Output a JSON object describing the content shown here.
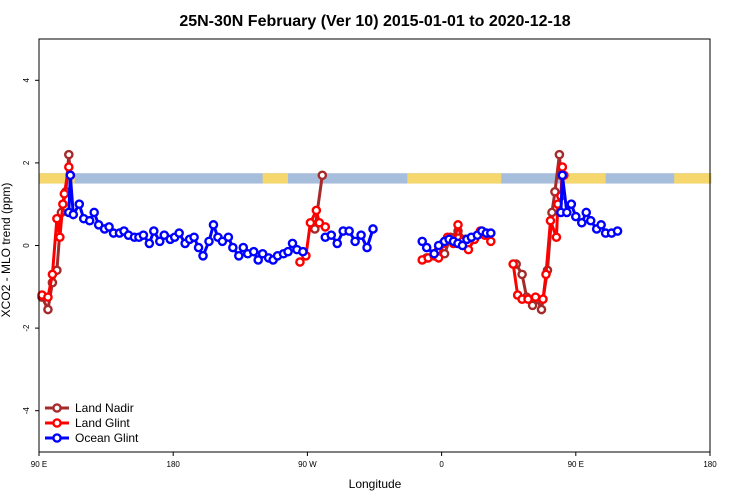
{
  "chart_data": {
    "type": "line",
    "title": "25N-30N February (Ver 10)   2015-01-01 to 2020-12-18",
    "xlabel": "Longitude",
    "ylabel": "XCO2 - MLO trend (ppm)",
    "xlim": [
      90,
      450
    ],
    "ylim": [
      -5,
      5
    ],
    "x_ticks": [
      {
        "value": 90,
        "label": "90 E"
      },
      {
        "value": 180,
        "label": "180"
      },
      {
        "value": 270,
        "label": "90 W"
      },
      {
        "value": 360,
        "label": "0"
      },
      {
        "value": 450,
        "label": "90 E"
      },
      {
        "value": 540,
        "label": "180"
      }
    ],
    "y_ticks": [
      {
        "value": -4,
        "label": "-4"
      },
      {
        "value": -2,
        "label": "-2"
      },
      {
        "value": 0,
        "label": "0"
      },
      {
        "value": 2,
        "label": "2"
      },
      {
        "value": 4,
        "label": "4"
      }
    ],
    "grid": false,
    "legend_position": "bottom-left",
    "land_band": {
      "y_range": [
        1.5,
        1.75
      ],
      "land_color": "#f5d76e",
      "ocean_color": "#a6bddb",
      "land_segments": [
        [
          90,
          114
        ],
        [
          240,
          257
        ],
        [
          337,
          400
        ],
        [
          441,
          470
        ],
        [
          516,
          541
        ]
      ]
    },
    "series": [
      {
        "name": "Land Nadir",
        "color": "#a52a2a",
        "points": [
          [
            92,
            -1.25
          ],
          [
            96,
            -1.55
          ],
          [
            99,
            -0.9
          ],
          [
            102,
            -0.6
          ],
          [
            105,
            0.8
          ],
          [
            108,
            1.3
          ],
          [
            110,
            2.2
          ],
          [
            111,
            1.7
          ],
          [
            275,
            0.4
          ],
          [
            280,
            1.7
          ],
          [
            350,
            -0.3
          ],
          [
            355,
            -0.2
          ],
          [
            358,
            -0.1
          ],
          [
            362,
            -0.2
          ],
          [
            366,
            0.2
          ],
          [
            371,
            0.35
          ],
          [
            376,
            0.15
          ],
          [
            410,
            -0.45
          ],
          [
            414,
            -0.7
          ],
          [
            417,
            -1.25
          ],
          [
            421,
            -1.45
          ],
          [
            424,
            -1.3
          ],
          [
            427,
            -1.55
          ],
          [
            431,
            -0.6
          ],
          [
            434,
            0.8
          ],
          [
            436,
            1.3
          ],
          [
            439,
            2.2
          ],
          [
            440,
            1.7
          ]
        ]
      },
      {
        "name": "Land Glint",
        "color": "#ff0000",
        "points": [
          [
            92,
            -1.2
          ],
          [
            96,
            -1.25
          ],
          [
            99,
            -0.7
          ],
          [
            102,
            0.65
          ],
          [
            104,
            0.2
          ],
          [
            106,
            1.0
          ],
          [
            107,
            1.25
          ],
          [
            110,
            1.9
          ],
          [
            111,
            1.7
          ],
          [
            265,
            -0.4
          ],
          [
            269,
            -0.25
          ],
          [
            272,
            0.55
          ],
          [
            276,
            0.85
          ],
          [
            278,
            0.55
          ],
          [
            282,
            0.45
          ],
          [
            347,
            -0.35
          ],
          [
            351,
            -0.3
          ],
          [
            355,
            -0.25
          ],
          [
            358,
            -0.3
          ],
          [
            361,
            0.05
          ],
          [
            364,
            0.2
          ],
          [
            368,
            0.05
          ],
          [
            371,
            0.5
          ],
          [
            374,
            0.1
          ],
          [
            378,
            -0.1
          ],
          [
            382,
            0.15
          ],
          [
            386,
            0.35
          ],
          [
            389,
            0.25
          ],
          [
            393,
            0.1
          ],
          [
            408,
            -0.45
          ],
          [
            411,
            -1.2
          ],
          [
            414,
            -1.3
          ],
          [
            418,
            -1.3
          ],
          [
            423,
            -1.25
          ],
          [
            428,
            -1.3
          ],
          [
            430,
            -0.7
          ],
          [
            433,
            0.6
          ],
          [
            437,
            0.2
          ],
          [
            438,
            1.0
          ],
          [
            440,
            1.2
          ],
          [
            441,
            1.9
          ],
          [
            442,
            1.7
          ]
        ]
      },
      {
        "name": "Ocean Glint",
        "color": "#0000ff",
        "points": [
          [
            110,
            0.8
          ],
          [
            111,
            1.7
          ],
          [
            113,
            0.75
          ],
          [
            117,
            1.0
          ],
          [
            120,
            0.65
          ],
          [
            124,
            0.6
          ],
          [
            127,
            0.8
          ],
          [
            130,
            0.5
          ],
          [
            134,
            0.4
          ],
          [
            137,
            0.45
          ],
          [
            140,
            0.3
          ],
          [
            144,
            0.3
          ],
          [
            147,
            0.35
          ],
          [
            150,
            0.25
          ],
          [
            154,
            0.2
          ],
          [
            157,
            0.2
          ],
          [
            160,
            0.25
          ],
          [
            164,
            0.05
          ],
          [
            167,
            0.35
          ],
          [
            171,
            0.1
          ],
          [
            174,
            0.25
          ],
          [
            178,
            0.15
          ],
          [
            181,
            0.2
          ],
          [
            184,
            0.3
          ],
          [
            188,
            0.05
          ],
          [
            191,
            0.15
          ],
          [
            194,
            0.2
          ],
          [
            197,
            -0.05
          ],
          [
            200,
            -0.25
          ],
          [
            204,
            0.1
          ],
          [
            207,
            0.5
          ],
          [
            210,
            0.2
          ],
          [
            213,
            0.1
          ],
          [
            217,
            0.2
          ],
          [
            220,
            -0.05
          ],
          [
            224,
            -0.25
          ],
          [
            227,
            -0.05
          ],
          [
            230,
            -0.2
          ],
          [
            234,
            -0.15
          ],
          [
            237,
            -0.35
          ],
          [
            240,
            -0.2
          ],
          [
            244,
            -0.3
          ],
          [
            247,
            -0.35
          ],
          [
            250,
            -0.25
          ],
          [
            254,
            -0.2
          ],
          [
            257,
            -0.15
          ],
          [
            260,
            0.05
          ],
          [
            263,
            -0.1
          ],
          [
            267,
            -0.15
          ],
          [
            282,
            0.2
          ],
          [
            286,
            0.25
          ],
          [
            290,
            0.05
          ],
          [
            294,
            0.35
          ],
          [
            298,
            0.35
          ],
          [
            302,
            0.1
          ],
          [
            306,
            0.25
          ],
          [
            310,
            -0.05
          ],
          [
            314,
            0.4
          ],
          [
            347,
            0.1
          ],
          [
            350,
            -0.05
          ],
          [
            355,
            -0.2
          ],
          [
            358,
            0.0
          ],
          [
            362,
            0.1
          ],
          [
            365,
            0.15
          ],
          [
            368,
            0.1
          ],
          [
            371,
            0.05
          ],
          [
            374,
            0.0
          ],
          [
            377,
            0.15
          ],
          [
            380,
            0.2
          ],
          [
            384,
            0.25
          ],
          [
            387,
            0.35
          ],
          [
            390,
            0.3
          ],
          [
            393,
            0.3
          ],
          [
            440,
            0.8
          ],
          [
            441,
            1.7
          ],
          [
            444,
            0.8
          ],
          [
            447,
            1.0
          ],
          [
            450,
            0.7
          ],
          [
            454,
            0.55
          ],
          [
            457,
            0.8
          ],
          [
            460,
            0.6
          ],
          [
            464,
            0.4
          ],
          [
            467,
            0.5
          ],
          [
            470,
            0.3
          ],
          [
            474,
            0.3
          ],
          [
            478,
            0.35
          ]
        ]
      }
    ]
  }
}
